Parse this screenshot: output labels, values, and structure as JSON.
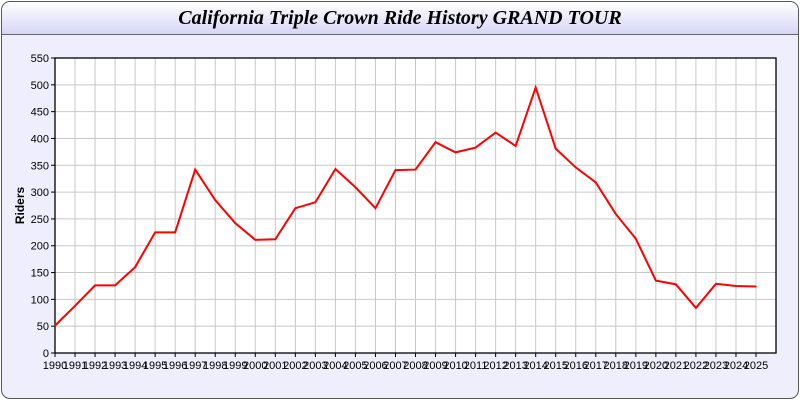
{
  "chart_data": {
    "type": "line",
    "title": "California Triple Crown Ride History GRAND TOUR",
    "xlabel": "",
    "ylabel": "Riders",
    "ylim": [
      0,
      550
    ],
    "yticks": [
      0,
      50,
      100,
      150,
      200,
      250,
      300,
      350,
      400,
      450,
      500,
      550
    ],
    "grid": true,
    "x": [
      1990,
      1991,
      1992,
      1993,
      1994,
      1995,
      1996,
      1997,
      1998,
      1999,
      2000,
      2001,
      2002,
      2003,
      2004,
      2005,
      2006,
      2007,
      2008,
      2009,
      2010,
      2011,
      2012,
      2013,
      2014,
      2015,
      2016,
      2017,
      2018,
      2019,
      2020,
      2021,
      2022,
      2023,
      2024,
      2025
    ],
    "series": [
      {
        "color": "#ff0000",
        "values": [
          51,
          88,
          126,
          126,
          160,
          225,
          225,
          342,
          285,
          242,
          211,
          212,
          270,
          281,
          343,
          309,
          270,
          341,
          342,
          393,
          374,
          383,
          411,
          386,
          495,
          381,
          346,
          318,
          259,
          213,
          135,
          128,
          84,
          129,
          125,
          124
        ]
      }
    ]
  }
}
